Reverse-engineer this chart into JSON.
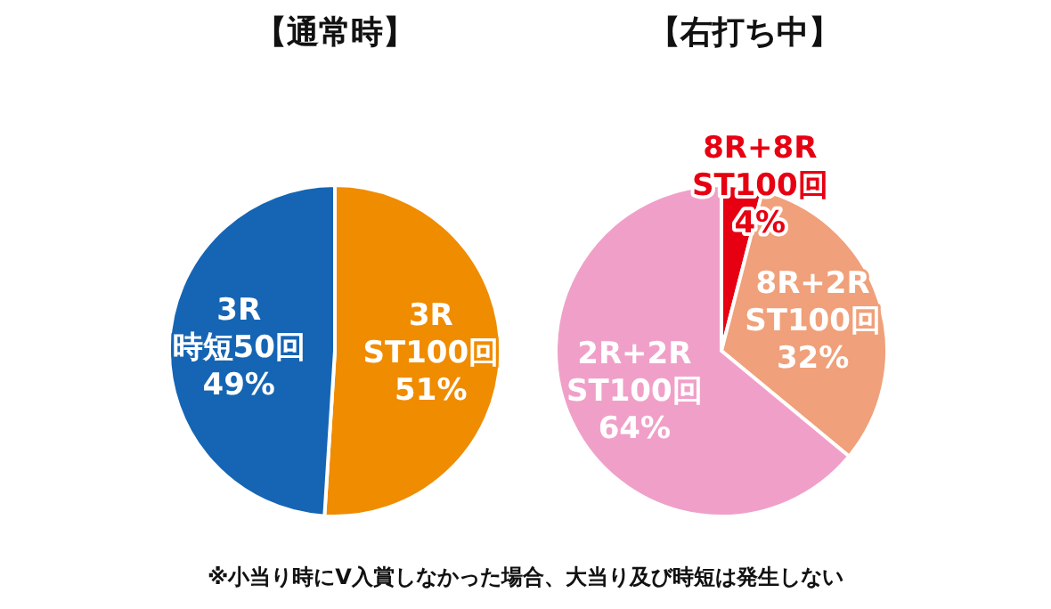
{
  "chart_data": [
    {
      "type": "pie",
      "title": "【通常時】",
      "categories": [
        "3R\nST100回",
        "3R\n時短50回"
      ],
      "values": [
        51,
        49
      ],
      "value_labels": [
        "51%",
        "49%"
      ],
      "colors": [
        "#f08c00",
        "#1565b4"
      ]
    },
    {
      "type": "pie",
      "title": "【右打ち中】",
      "categories": [
        "8R+8R\nST100回",
        "8R+2R\nST100回",
        "2R+2R\nST100回"
      ],
      "values": [
        4,
        32,
        64
      ],
      "value_labels": [
        "4%",
        "32%",
        "64%"
      ],
      "colors": [
        "#e60012",
        "#f0a07a",
        "#f0a0c8"
      ],
      "annotations": [
        "※小当り時にV入賞しなかった場合、大当り及び時短は発生しない"
      ]
    }
  ]
}
